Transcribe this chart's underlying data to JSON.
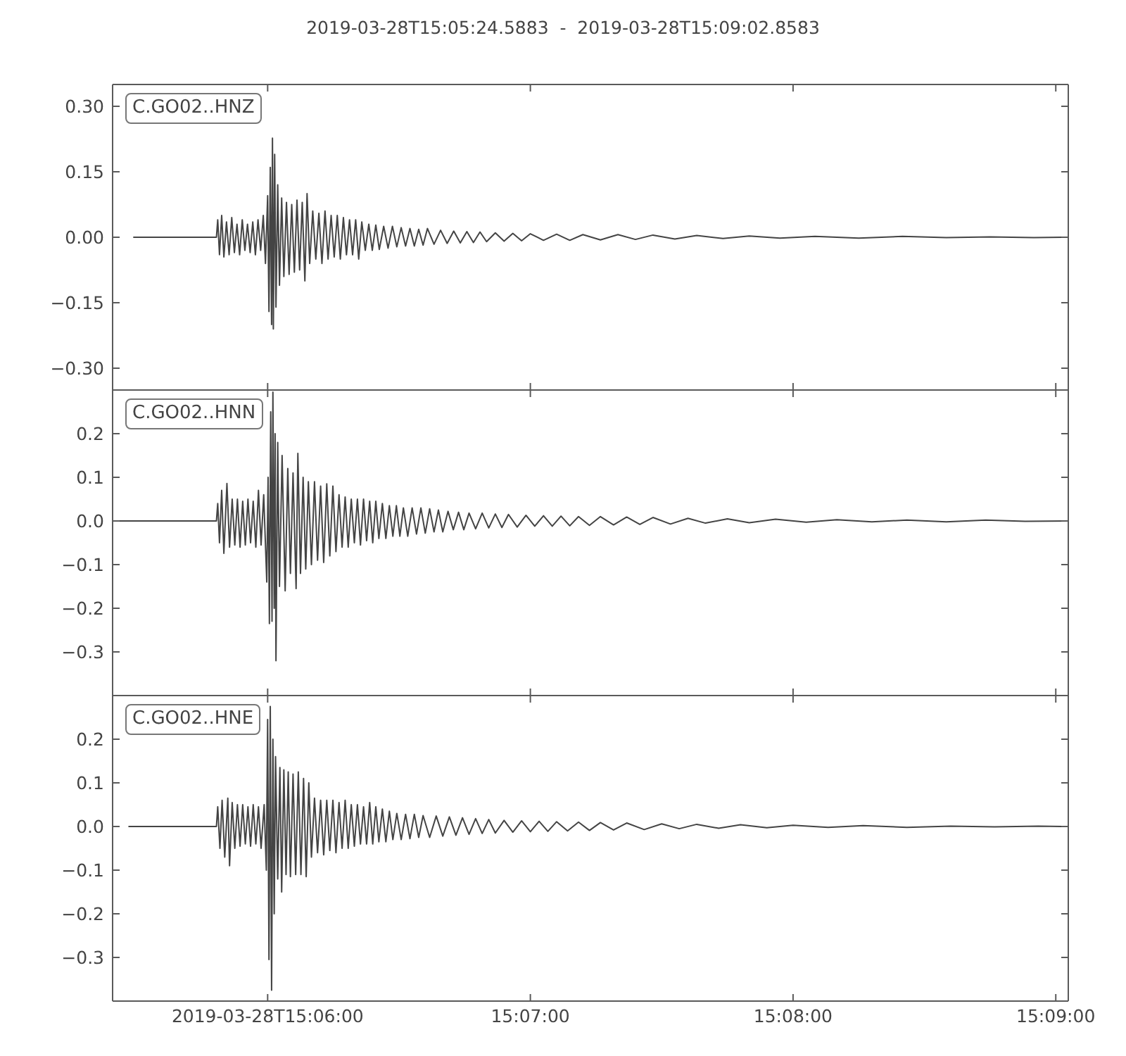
{
  "chart_data": [
    {
      "type": "line",
      "title": "2019-03-28T15:05:24.5883  -  2019-03-28T15:09:02.8583",
      "tick_labels": "y",
      "legend": "top left",
      "xlim": [
        "2019-03-28T15:05:24.5883",
        "2019-03-28T15:09:02.8583"
      ],
      "xticks": [
        {
          "value": "2019-03-28T15:06:00",
          "label": null
        },
        {
          "value": "2019-03-28T15:07:00",
          "label": null
        },
        {
          "value": "2019-03-28T15:08:00",
          "label": null
        },
        {
          "value": "2019-03-28T15:09:00",
          "label": null
        }
      ],
      "ylim": [
        -0.35,
        0.35
      ],
      "yticks": [
        {
          "value": 0.3,
          "label": "0.30"
        },
        {
          "value": 0.15,
          "label": "0.15"
        },
        {
          "value": 0,
          "label": "0.00"
        },
        {
          "value": -0.15,
          "label": "−0.15"
        },
        {
          "value": -0.3,
          "label": "−0.30"
        }
      ],
      "x": [
        "2019-03-28T15:05:29.3",
        "2019-03-28T15:05:48.3",
        "2019-03-28T15:05:48.6",
        "2019-03-28T15:05:49.0",
        "2019-03-28T15:05:49.5",
        "2019-03-28T15:05:50.0",
        "2019-03-28T15:05:50.6",
        "2019-03-28T15:05:51.2",
        "2019-03-28T15:05:51.8",
        "2019-03-28T15:05:52.4",
        "2019-03-28T15:05:53.0",
        "2019-03-28T15:05:53.6",
        "2019-03-28T15:05:54.2",
        "2019-03-28T15:05:54.8",
        "2019-03-28T15:05:55.4",
        "2019-03-28T15:05:56.0",
        "2019-03-28T15:05:56.6",
        "2019-03-28T15:05:57.2",
        "2019-03-28T15:05:57.8",
        "2019-03-28T15:05:58.4",
        "2019-03-28T15:05:59.0",
        "2019-03-28T15:05:59.5",
        "2019-03-28T15:06:00.0",
        "2019-03-28T15:06:00.3",
        "2019-03-28T15:06:00.6",
        "2019-03-28T15:06:00.9",
        "2019-03-28T15:06:01.1",
        "2019-03-28T15:06:01.3",
        "2019-03-28T15:06:01.6",
        "2019-03-28T15:06:01.9",
        "2019-03-28T15:06:02.3",
        "2019-03-28T15:06:02.7",
        "2019-03-28T15:06:03.2",
        "2019-03-28T15:06:03.7",
        "2019-03-28T15:06:04.3",
        "2019-03-28T15:06:04.9",
        "2019-03-28T15:06:05.5",
        "2019-03-28T15:06:06.1",
        "2019-03-28T15:06:06.7",
        "2019-03-28T15:06:07.3",
        "2019-03-28T15:06:07.9",
        "2019-03-28T15:06:08.5",
        "2019-03-28T15:06:09.0",
        "2019-03-28T15:06:09.6",
        "2019-03-28T15:06:10.3",
        "2019-03-28T15:06:11.0",
        "2019-03-28T15:06:11.7",
        "2019-03-28T15:06:12.4",
        "2019-03-28T15:06:13.1",
        "2019-03-28T15:06:13.8",
        "2019-03-28T15:06:14.5",
        "2019-03-28T15:06:15.2",
        "2019-03-28T15:06:15.9",
        "2019-03-28T15:06:16.6",
        "2019-03-28T15:06:17.3",
        "2019-03-28T15:06:18.0",
        "2019-03-28T15:06:18.7",
        "2019-03-28T15:06:19.4",
        "2019-03-28T15:06:20.1",
        "2019-03-28T15:06:20.8",
        "2019-03-28T15:06:21.5",
        "2019-03-28T15:06:22.3",
        "2019-03-28T15:06:23.1",
        "2019-03-28T15:06:23.9",
        "2019-03-28T15:06:24.7",
        "2019-03-28T15:06:25.5",
        "2019-03-28T15:06:26.5",
        "2019-03-28T15:06:27.5",
        "2019-03-28T15:06:28.5",
        "2019-03-28T15:06:29.5",
        "2019-03-28T15:06:30.5",
        "2019-03-28T15:06:31.5",
        "2019-03-28T15:06:32.5",
        "2019-03-28T15:06:33.5",
        "2019-03-28T15:06:34.5",
        "2019-03-28T15:06:35.5",
        "2019-03-28T15:06:36.5",
        "2019-03-28T15:06:38.0",
        "2019-03-28T15:06:39.5",
        "2019-03-28T15:06:41.0",
        "2019-03-28T15:06:42.5",
        "2019-03-28T15:06:44.0",
        "2019-03-28T15:06:45.5",
        "2019-03-28T15:06:47.0",
        "2019-03-28T15:06:48.5",
        "2019-03-28T15:06:50.0",
        "2019-03-28T15:06:52.0",
        "2019-03-28T15:06:54.0",
        "2019-03-28T15:06:56.0",
        "2019-03-28T15:06:58.0",
        "2019-03-28T15:07:00.0",
        "2019-03-28T15:07:03.0",
        "2019-03-28T15:07:06.0",
        "2019-03-28T15:07:09.0",
        "2019-03-28T15:07:12.0",
        "2019-03-28T15:07:16.0",
        "2019-03-28T15:07:20.0",
        "2019-03-28T15:07:24.0",
        "2019-03-28T15:07:28.0",
        "2019-03-28T15:07:33.0",
        "2019-03-28T15:07:38.0",
        "2019-03-28T15:07:44.0",
        "2019-03-28T15:07:50.0",
        "2019-03-28T15:07:57.0",
        "2019-03-28T15:08:05.0",
        "2019-03-28T15:08:15.0",
        "2019-03-28T15:08:25.0",
        "2019-03-28T15:08:35.0",
        "2019-03-28T15:08:45.0",
        "2019-03-28T15:08:55.0",
        "2019-03-28T15:09:01.5"
      ],
      "series": [
        {
          "name": "C.GO02..HNZ",
          "color": "#444444",
          "values": [
            0,
            0,
            0.04,
            -0.04,
            0.05,
            -0.045,
            0.035,
            -0.04,
            0.045,
            -0.035,
            0.03,
            -0.04,
            0.04,
            -0.03,
            0.03,
            -0.035,
            0.035,
            -0.04,
            0.04,
            -0.03,
            0.05,
            -0.06,
            0.095,
            -0.17,
            0.16,
            -0.2,
            0.227,
            -0.21,
            0.19,
            -0.16,
            0.12,
            -0.11,
            0.09,
            -0.09,
            0.08,
            -0.085,
            0.075,
            -0.08,
            0.085,
            -0.075,
            0.08,
            -0.1,
            0.1,
            -0.06,
            0.06,
            -0.05,
            0.055,
            -0.06,
            0.06,
            -0.05,
            0.05,
            -0.045,
            0.05,
            -0.05,
            0.045,
            -0.04,
            0.04,
            -0.04,
            0.04,
            -0.05,
            0.035,
            -0.03,
            0.03,
            -0.03,
            0.028,
            -0.028,
            0.025,
            -0.025,
            0.025,
            -0.022,
            0.022,
            -0.02,
            0.02,
            -0.02,
            0.018,
            -0.018,
            0.02,
            -0.016,
            0.016,
            -0.014,
            0.014,
            -0.013,
            0.013,
            -0.012,
            0.012,
            -0.01,
            0.01,
            -0.009,
            0.009,
            -0.008,
            0.008,
            -0.007,
            0.007,
            -0.007,
            0.006,
            -0.006,
            0.006,
            -0.005,
            0.005,
            -0.004,
            0.004,
            -0.003,
            0.003,
            -0.002,
            0.002,
            -0.002,
            0.002,
            -0.001,
            0.001,
            -0.001,
            0
          ]
        }
      ]
    },
    {
      "type": "line",
      "tick_labels": "y",
      "legend": "top left",
      "xlim": [
        "2019-03-28T15:05:24.5883",
        "2019-03-28T15:09:02.8583"
      ],
      "xticks": [
        {
          "value": "2019-03-28T15:06:00",
          "label": null
        },
        {
          "value": "2019-03-28T15:07:00",
          "label": null
        },
        {
          "value": "2019-03-28T15:08:00",
          "label": null
        },
        {
          "value": "2019-03-28T15:09:00",
          "label": null
        }
      ],
      "ylim": [
        -0.4,
        0.3
      ],
      "yticks": [
        {
          "value": 0.2,
          "label": "0.2"
        },
        {
          "value": 0.1,
          "label": "0.1"
        },
        {
          "value": 0,
          "label": "0.0"
        },
        {
          "value": -0.1,
          "label": "−0.1"
        },
        {
          "value": -0.2,
          "label": "−0.2"
        },
        {
          "value": -0.3,
          "label": "−0.3"
        }
      ],
      "x": [
        "2019-03-28T15:05:24.6",
        "2019-03-28T15:05:48.3",
        "2019-03-28T15:05:48.6",
        "2019-03-28T15:05:49.0",
        "2019-03-28T15:05:49.5",
        "2019-03-28T15:05:50.0",
        "2019-03-28T15:05:50.7",
        "2019-03-28T15:05:51.3",
        "2019-03-28T15:05:51.9",
        "2019-03-28T15:05:52.5",
        "2019-03-28T15:05:53.1",
        "2019-03-28T15:05:53.7",
        "2019-03-28T15:05:54.3",
        "2019-03-28T15:05:54.9",
        "2019-03-28T15:05:55.5",
        "2019-03-28T15:05:56.1",
        "2019-03-28T15:05:56.7",
        "2019-03-28T15:05:57.3",
        "2019-03-28T15:05:57.9",
        "2019-03-28T15:05:58.5",
        "2019-03-28T15:05:59.1",
        "2019-03-28T15:05:59.8",
        "2019-03-28T15:06:00.1",
        "2019-03-28T15:06:00.4",
        "2019-03-28T15:06:00.7",
        "2019-03-28T15:06:01.0",
        "2019-03-28T15:06:01.2",
        "2019-03-28T15:06:01.5",
        "2019-03-28T15:06:01.7",
        "2019-03-28T15:06:01.9",
        "2019-03-28T15:06:02.3",
        "2019-03-28T15:06:02.7",
        "2019-03-28T15:06:03.3",
        "2019-03-28T15:06:04.0",
        "2019-03-28T15:06:04.6",
        "2019-03-28T15:06:05.2",
        "2019-03-28T15:06:05.8",
        "2019-03-28T15:06:06.5",
        "2019-03-28T15:06:06.9",
        "2019-03-28T15:06:07.5",
        "2019-03-28T15:06:08.1",
        "2019-03-28T15:06:08.7",
        "2019-03-28T15:06:09.3",
        "2019-03-28T15:06:10.0",
        "2019-03-28T15:06:10.7",
        "2019-03-28T15:06:11.4",
        "2019-03-28T15:06:12.1",
        "2019-03-28T15:06:12.8",
        "2019-03-28T15:06:13.5",
        "2019-03-28T15:06:14.2",
        "2019-03-28T15:06:14.9",
        "2019-03-28T15:06:15.6",
        "2019-03-28T15:06:16.3",
        "2019-03-28T15:06:17.0",
        "2019-03-28T15:06:17.7",
        "2019-03-28T15:06:18.4",
        "2019-03-28T15:06:19.1",
        "2019-03-28T15:06:19.8",
        "2019-03-28T15:06:20.5",
        "2019-03-28T15:06:21.2",
        "2019-03-28T15:06:21.9",
        "2019-03-28T15:06:22.6",
        "2019-03-28T15:06:23.3",
        "2019-03-28T15:06:24.0",
        "2019-03-28T15:06:24.7",
        "2019-03-28T15:06:25.4",
        "2019-03-28T15:06:26.2",
        "2019-03-28T15:06:27.0",
        "2019-03-28T15:06:27.8",
        "2019-03-28T15:06:28.6",
        "2019-03-28T15:06:29.4",
        "2019-03-28T15:06:30.2",
        "2019-03-28T15:06:31.0",
        "2019-03-28T15:06:32.0",
        "2019-03-28T15:06:33.0",
        "2019-03-28T15:06:34.0",
        "2019-03-28T15:06:35.0",
        "2019-03-28T15:06:36.0",
        "2019-03-28T15:06:37.0",
        "2019-03-28T15:06:38.0",
        "2019-03-28T15:06:39.0",
        "2019-03-28T15:06:40.0",
        "2019-03-28T15:06:41.2",
        "2019-03-28T15:06:42.4",
        "2019-03-28T15:06:43.6",
        "2019-03-28T15:06:44.8",
        "2019-03-28T15:06:46.0",
        "2019-03-28T15:06:47.5",
        "2019-03-28T15:06:49.0",
        "2019-03-28T15:06:50.5",
        "2019-03-28T15:06:52.0",
        "2019-03-28T15:06:53.5",
        "2019-03-28T15:06:55.0",
        "2019-03-28T15:06:57.0",
        "2019-03-28T15:06:59.0",
        "2019-03-28T15:07:01.0",
        "2019-03-28T15:07:03.0",
        "2019-03-28T15:07:05.0",
        "2019-03-28T15:07:07.0",
        "2019-03-28T15:07:09.0",
        "2019-03-28T15:07:11.0",
        "2019-03-28T15:07:13.5",
        "2019-03-28T15:07:16.0",
        "2019-03-28T15:07:19.0",
        "2019-03-28T15:07:22.0",
        "2019-03-28T15:07:25.0",
        "2019-03-28T15:07:28.0",
        "2019-03-28T15:07:32.0",
        "2019-03-28T15:07:36.0",
        "2019-03-28T15:07:40.0",
        "2019-03-28T15:07:45.0",
        "2019-03-28T15:07:50.0",
        "2019-03-28T15:07:56.0",
        "2019-03-28T15:08:03.0",
        "2019-03-28T15:08:10.0",
        "2019-03-28T15:08:18.0",
        "2019-03-28T15:08:26.0",
        "2019-03-28T15:08:35.0",
        "2019-03-28T15:08:44.0",
        "2019-03-28T15:08:53.0",
        "2019-03-28T15:09:02.8"
      ],
      "series": [
        {
          "name": "C.GO02..HNN",
          "color": "#444444",
          "values": [
            0,
            0,
            0.04,
            -0.05,
            0.07,
            -0.074,
            0.086,
            -0.06,
            0.05,
            -0.055,
            0.05,
            -0.06,
            0.045,
            -0.055,
            0.05,
            -0.05,
            0.045,
            -0.06,
            0.07,
            -0.055,
            0.06,
            -0.14,
            0.1,
            -0.235,
            0.25,
            -0.23,
            0.295,
            -0.2,
            0.2,
            -0.32,
            0.18,
            -0.15,
            0.15,
            -0.16,
            0.12,
            -0.12,
            0.11,
            -0.155,
            0.155,
            -0.12,
            0.1,
            -0.11,
            0.09,
            -0.1,
            0.09,
            -0.09,
            0.08,
            -0.095,
            0.085,
            -0.08,
            0.08,
            -0.07,
            0.06,
            -0.06,
            0.055,
            -0.06,
            0.05,
            -0.05,
            0.05,
            -0.055,
            0.05,
            -0.045,
            0.045,
            -0.05,
            0.045,
            -0.04,
            0.04,
            -0.04,
            0.035,
            -0.035,
            0.035,
            -0.035,
            0.03,
            -0.035,
            0.03,
            -0.03,
            0.03,
            -0.028,
            0.028,
            -0.025,
            0.025,
            -0.025,
            0.022,
            -0.02,
            0.02,
            -0.02,
            0.018,
            -0.018,
            0.018,
            -0.016,
            0.016,
            -0.015,
            0.015,
            -0.014,
            0.013,
            -0.012,
            0.012,
            -0.012,
            0.011,
            -0.011,
            0.01,
            -0.01,
            0.01,
            -0.009,
            0.009,
            -0.008,
            0.008,
            -0.007,
            0.006,
            -0.005,
            0.005,
            -0.004,
            0.004,
            -0.003,
            0.003,
            -0.002,
            0.002,
            -0.002,
            0.002,
            -0.001,
            0
          ]
        }
      ]
    },
    {
      "type": "line",
      "legend": "top left",
      "xlim": [
        "2019-03-28T15:05:24.5883",
        "2019-03-28T15:09:02.8583"
      ],
      "xticks": [
        {
          "value": "2019-03-28T15:06:00",
          "label": "2019-03-28T15:06:00"
        },
        {
          "value": "2019-03-28T15:07:00",
          "label": "15:07:00"
        },
        {
          "value": "2019-03-28T15:08:00",
          "label": "15:08:00"
        },
        {
          "value": "2019-03-28T15:09:00",
          "label": "15:09:00"
        }
      ],
      "ylim": [
        -0.4,
        0.3
      ],
      "yticks": [
        {
          "value": 0.2,
          "label": "0.2"
        },
        {
          "value": 0.1,
          "label": "0.1"
        },
        {
          "value": 0,
          "label": "0.0"
        },
        {
          "value": -0.1,
          "label": "−0.1"
        },
        {
          "value": -0.2,
          "label": "−0.2"
        },
        {
          "value": -0.3,
          "label": "−0.3"
        }
      ],
      "x": [
        "2019-03-28T15:05:28.2",
        "2019-03-28T15:05:48.3",
        "2019-03-28T15:05:48.6",
        "2019-03-28T15:05:49.1",
        "2019-03-28T15:05:49.6",
        "2019-03-28T15:05:50.2",
        "2019-03-28T15:05:50.9",
        "2019-03-28T15:05:51.3",
        "2019-03-28T15:05:51.9",
        "2019-03-28T15:05:52.5",
        "2019-03-28T15:05:53.1",
        "2019-03-28T15:05:53.7",
        "2019-03-28T15:05:54.3",
        "2019-03-28T15:05:54.9",
        "2019-03-28T15:05:55.5",
        "2019-03-28T15:05:56.1",
        "2019-03-28T15:05:56.7",
        "2019-03-28T15:05:57.3",
        "2019-03-28T15:05:57.9",
        "2019-03-28T15:05:58.5",
        "2019-03-28T15:05:59.2",
        "2019-03-28T15:05:59.7",
        "2019-03-28T15:06:00.0",
        "2019-03-28T15:06:00.3",
        "2019-03-28T15:06:00.6",
        "2019-03-28T15:06:00.9",
        "2019-03-28T15:06:01.2",
        "2019-03-28T15:06:01.5",
        "2019-03-28T15:06:01.8",
        "2019-03-28T15:06:02.3",
        "2019-03-28T15:06:02.8",
        "2019-03-28T15:06:03.2",
        "2019-03-28T15:06:03.7",
        "2019-03-28T15:06:04.2",
        "2019-03-28T15:06:04.7",
        "2019-03-28T15:06:05.2",
        "2019-03-28T15:06:05.8",
        "2019-03-28T15:06:06.4",
        "2019-03-28T15:06:07.0",
        "2019-03-28T15:06:07.6",
        "2019-03-28T15:06:08.2",
        "2019-03-28T15:06:08.8",
        "2019-03-28T15:06:09.4",
        "2019-03-28T15:06:10.0",
        "2019-03-28T15:06:10.7",
        "2019-03-28T15:06:11.4",
        "2019-03-28T15:06:12.1",
        "2019-03-28T15:06:12.8",
        "2019-03-28T15:06:13.5",
        "2019-03-28T15:06:14.2",
        "2019-03-28T15:06:14.9",
        "2019-03-28T15:06:15.6",
        "2019-03-28T15:06:16.3",
        "2019-03-28T15:06:17.0",
        "2019-03-28T15:06:17.7",
        "2019-03-28T15:06:18.4",
        "2019-03-28T15:06:19.1",
        "2019-03-28T15:06:19.8",
        "2019-03-28T15:06:20.5",
        "2019-03-28T15:06:21.2",
        "2019-03-28T15:06:21.9",
        "2019-03-28T15:06:22.6",
        "2019-03-28T15:06:23.3",
        "2019-03-28T15:06:24.0",
        "2019-03-28T15:06:24.7",
        "2019-03-28T15:06:25.4",
        "2019-03-28T15:06:26.2",
        "2019-03-28T15:06:27.0",
        "2019-03-28T15:06:27.8",
        "2019-03-28T15:06:28.6",
        "2019-03-28T15:06:29.5",
        "2019-03-28T15:06:30.5",
        "2019-03-28T15:06:31.5",
        "2019-03-28T15:06:32.5",
        "2019-03-28T15:06:33.5",
        "2019-03-28T15:06:34.5",
        "2019-03-28T15:06:35.5",
        "2019-03-28T15:06:37.0",
        "2019-03-28T15:06:38.5",
        "2019-03-28T15:06:40.0",
        "2019-03-28T15:06:41.5",
        "2019-03-28T15:06:43.0",
        "2019-03-28T15:06:44.5",
        "2019-03-28T15:06:46.0",
        "2019-03-28T15:06:47.5",
        "2019-03-28T15:06:49.0",
        "2019-03-28T15:06:50.5",
        "2019-03-28T15:06:52.0",
        "2019-03-28T15:06:54.0",
        "2019-03-28T15:06:56.0",
        "2019-03-28T15:06:58.0",
        "2019-03-28T15:07:00.0",
        "2019-03-28T15:07:02.0",
        "2019-03-28T15:07:04.0",
        "2019-03-28T15:07:06.0",
        "2019-03-28T15:07:08.5",
        "2019-03-28T15:07:11.0",
        "2019-03-28T15:07:13.5",
        "2019-03-28T15:07:16.0",
        "2019-03-28T15:07:19.0",
        "2019-03-28T15:07:22.0",
        "2019-03-28T15:07:26.0",
        "2019-03-28T15:07:30.0",
        "2019-03-28T15:07:34.0",
        "2019-03-28T15:07:38.0",
        "2019-03-28T15:07:43.0",
        "2019-03-28T15:07:48.0",
        "2019-03-28T15:07:54.0",
        "2019-03-28T15:08:00.0",
        "2019-03-28T15:08:08.0",
        "2019-03-28T15:08:16.0",
        "2019-03-28T15:08:26.0",
        "2019-03-28T15:08:36.0",
        "2019-03-28T15:08:46.0",
        "2019-03-28T15:08:56.0",
        "2019-03-28T15:09:01.5"
      ],
      "series": [
        {
          "name": "C.GO02..HNE",
          "color": "#444444",
          "values": [
            0,
            0,
            0.045,
            -0.05,
            0.06,
            -0.07,
            0.065,
            -0.09,
            0.055,
            -0.05,
            0.05,
            -0.045,
            0.05,
            -0.04,
            0.045,
            -0.045,
            0.05,
            -0.04,
            0.045,
            -0.05,
            0.05,
            -0.1,
            0.245,
            -0.305,
            0.275,
            -0.375,
            0.2,
            -0.2,
            0.16,
            -0.12,
            0.135,
            -0.15,
            0.13,
            -0.11,
            0.125,
            -0.115,
            0.12,
            -0.11,
            0.125,
            -0.11,
            0.11,
            -0.115,
            0.1,
            -0.07,
            0.065,
            -0.06,
            0.06,
            -0.065,
            0.06,
            -0.055,
            0.06,
            -0.06,
            0.055,
            -0.05,
            0.06,
            -0.05,
            0.05,
            -0.045,
            0.05,
            -0.04,
            0.045,
            -0.04,
            0.055,
            -0.04,
            0.045,
            -0.035,
            0.04,
            -0.035,
            0.035,
            -0.03,
            0.03,
            -0.03,
            0.028,
            -0.028,
            0.028,
            -0.025,
            0.025,
            -0.025,
            0.024,
            -0.022,
            0.022,
            -0.02,
            0.02,
            -0.018,
            0.018,
            -0.016,
            0.016,
            -0.015,
            0.014,
            -0.013,
            0.013,
            -0.012,
            0.012,
            -0.011,
            0.011,
            -0.01,
            0.01,
            -0.009,
            0.009,
            -0.008,
            0.008,
            -0.007,
            0.006,
            -0.005,
            0.005,
            -0.004,
            0.004,
            -0.003,
            0.003,
            -0.002,
            0.002,
            -0.002,
            0.001,
            -0.001,
            0.001,
            0
          ]
        }
      ]
    }
  ]
}
